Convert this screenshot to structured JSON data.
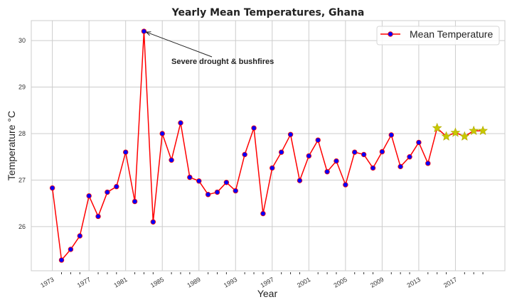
{
  "chart_data": {
    "type": "line",
    "title": "Yearly Mean Temperatures, Ghana",
    "xlabel": "Year",
    "ylabel": "Temperature °C",
    "xlim": [
      1970.7,
      2022.4
    ],
    "ylim": [
      25.05,
      30.43
    ],
    "grid": true,
    "x_ticks": [
      1973,
      1977,
      1981,
      1985,
      1989,
      1993,
      1997,
      2001,
      2005,
      2009,
      2013,
      2017
    ],
    "x_minor_ticks": [
      1974,
      1975,
      1976,
      1978,
      1979,
      1980,
      1982,
      1983,
      1984,
      1986,
      1987,
      1988,
      1990,
      1991,
      1992,
      1994,
      1995,
      1996,
      1998,
      1999,
      2000,
      2002,
      2003,
      2004,
      2006,
      2007,
      2008,
      2010,
      2011,
      2012,
      2014,
      2015,
      2016,
      2018,
      2019,
      2020
    ],
    "y_ticks": [
      26,
      27,
      28,
      29,
      30
    ],
    "legend": {
      "position": "top-right",
      "entries": [
        "Mean Temperature"
      ]
    },
    "series": [
      {
        "name": "Mean Temperature",
        "line_color": "#ff0000",
        "marker_color": "#0000ff",
        "x": [
          1973,
          1974,
          1975,
          1976,
          1977,
          1978,
          1979,
          1980,
          1981,
          1982,
          1983,
          1984,
          1985,
          1986,
          1987,
          1988,
          1989,
          1990,
          1991,
          1992,
          1993,
          1994,
          1995,
          1996,
          1997,
          1998,
          1999,
          2000,
          2001,
          2002,
          2003,
          2004,
          2005,
          2006,
          2007,
          2008,
          2009,
          2010,
          2011,
          2012,
          2013,
          2014,
          2015,
          2016,
          2017,
          2018,
          2019,
          2020
        ],
        "values": [
          26.83,
          25.28,
          25.51,
          25.8,
          26.66,
          26.22,
          26.74,
          26.86,
          27.6,
          26.54,
          30.2,
          26.1,
          28.0,
          27.43,
          28.23,
          27.06,
          26.98,
          26.69,
          26.74,
          26.95,
          26.77,
          27.55,
          28.12,
          26.28,
          27.26,
          27.6,
          27.98,
          26.99,
          27.52,
          27.86,
          27.18,
          27.41,
          26.9,
          27.6,
          27.55,
          27.26,
          27.61,
          27.97,
          27.29,
          27.5,
          27.81,
          27.36,
          28.12,
          27.94,
          28.02,
          27.94,
          28.06,
          28.06
        ],
        "star_marker_from": 2015,
        "star_color": "#c8c800"
      }
    ],
    "annotations": [
      {
        "text": "Severe drought & bushfires",
        "x": 1983,
        "y": 30.2
      }
    ]
  }
}
